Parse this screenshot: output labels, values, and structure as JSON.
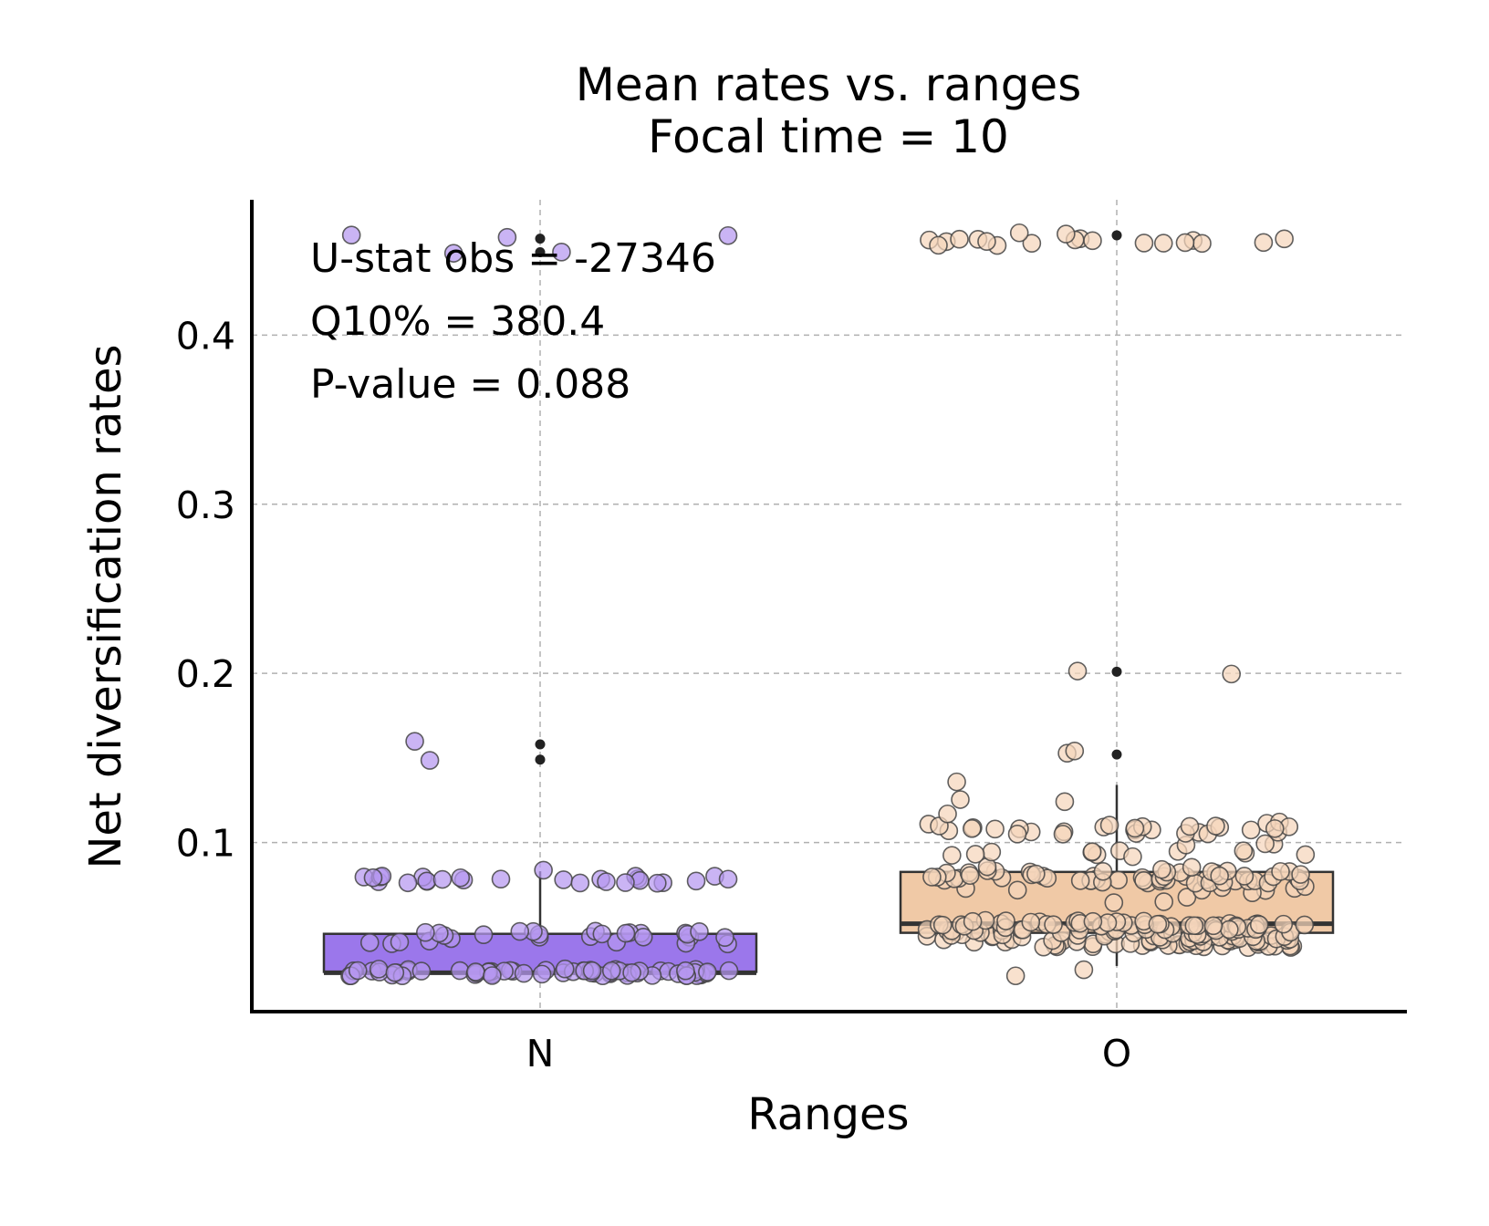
{
  "chart_data": {
    "type": "box",
    "title": "Mean rates vs. ranges",
    "subtitle": "Focal time = 10",
    "xlabel": "Ranges",
    "ylabel": "Net diversification rates",
    "categories": [
      "N",
      "O"
    ],
    "ylim": [
      0,
      0.48
    ],
    "yticks": [
      0.1,
      0.2,
      0.3,
      0.4
    ],
    "ytick_labels": [
      "0.1",
      "0.2",
      "0.3",
      "0.4"
    ],
    "grid": true,
    "annotations": [
      "U-stat obs = -27346",
      "Q10% = 380.4",
      "P-value = 0.088"
    ],
    "series": [
      {
        "name": "N",
        "color": "#9b77eb",
        "point_color": "#b597f0",
        "box": {
          "whisker_low": 0.023,
          "q1": 0.0235,
          "median": 0.023,
          "q3": 0.046,
          "whisker_high": 0.083
        },
        "outliers": [
          0.149,
          0.158,
          0.449,
          0.457
        ],
        "points": {
          "levels": [
            0.023,
            0.026,
            0.042,
            0.046,
            0.078,
            0.082,
            0.149,
            0.158,
            0.449,
            0.457
          ],
          "counts": [
            60,
            4,
            10,
            18,
            26,
            1,
            1,
            1,
            2,
            3
          ]
        }
      },
      {
        "name": "O",
        "color": "#f0c9a6",
        "point_color": "#f5d5bb",
        "box": {
          "whisker_low": 0.027,
          "q1": 0.0466,
          "median": 0.052,
          "q3": 0.0826,
          "whisker_high": 0.134
        },
        "outliers": [
          0.152,
          0.201,
          0.459
        ],
        "points": {
          "levels": [
            0.023,
            0.04,
            0.043,
            0.046,
            0.05,
            0.052,
            0.066,
            0.072,
            0.078,
            0.081,
            0.085,
            0.093,
            0.1,
            0.107,
            0.11,
            0.118,
            0.125,
            0.135,
            0.152,
            0.201,
            0.455,
            0.459
          ],
          "counts": [
            2,
            30,
            30,
            25,
            30,
            25,
            3,
            8,
            30,
            20,
            6,
            12,
            3,
            18,
            12,
            1,
            2,
            1,
            2,
            2,
            18,
            2
          ]
        }
      }
    ]
  }
}
